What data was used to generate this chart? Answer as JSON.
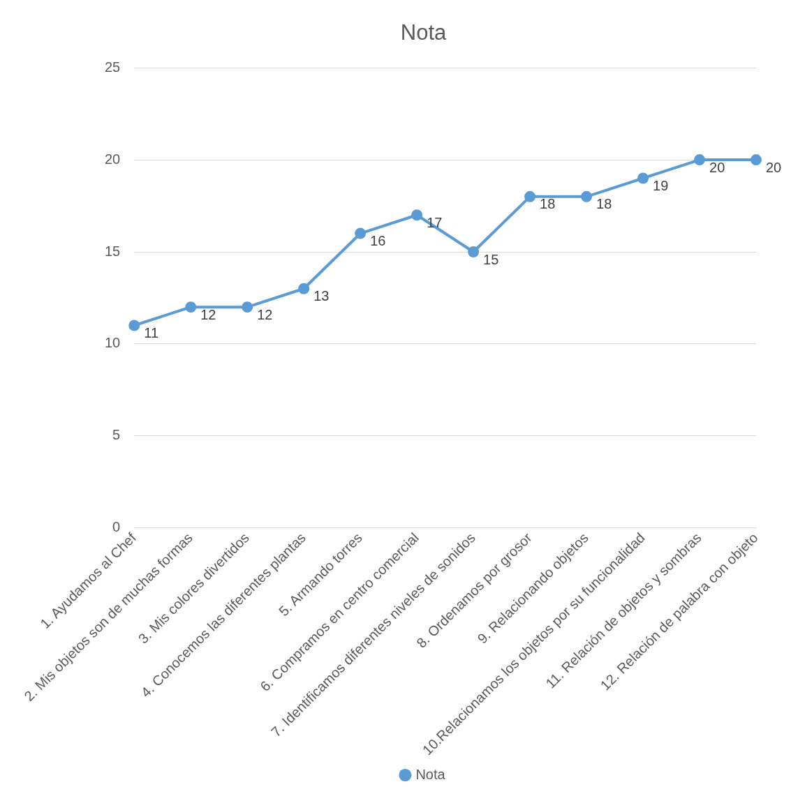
{
  "chart_data": {
    "type": "line",
    "title": "Nota",
    "categories": [
      "1. Ayudamos al Chef",
      "2. Mis objetos son de muchas formas",
      "3. Mis colores divertidos",
      "4. Conocemos las diferentes plantas",
      "5. Armando torres",
      "6. Compramos en centro comercial",
      "7. Identificamos diferentes niveles de sonidos",
      "8. Ordenamos por grosor",
      "9. Relacionando objetos",
      "10.Relacionamos los objetos por su funcionalidad",
      "11. Relación de objetos y sombras",
      "12. Relación de palabra con objeto"
    ],
    "series": [
      {
        "name": "Nota",
        "color": "#5b9bd5",
        "values": [
          11,
          12,
          12,
          13,
          16,
          17,
          15,
          18,
          18,
          19,
          20,
          20
        ]
      }
    ],
    "ylim": [
      0,
      25
    ],
    "yticks": [
      0,
      5,
      10,
      15,
      20,
      25
    ],
    "grid": "y",
    "legend": "bottom",
    "marker": "circle",
    "line_style": "solid",
    "data_labels": true
  }
}
